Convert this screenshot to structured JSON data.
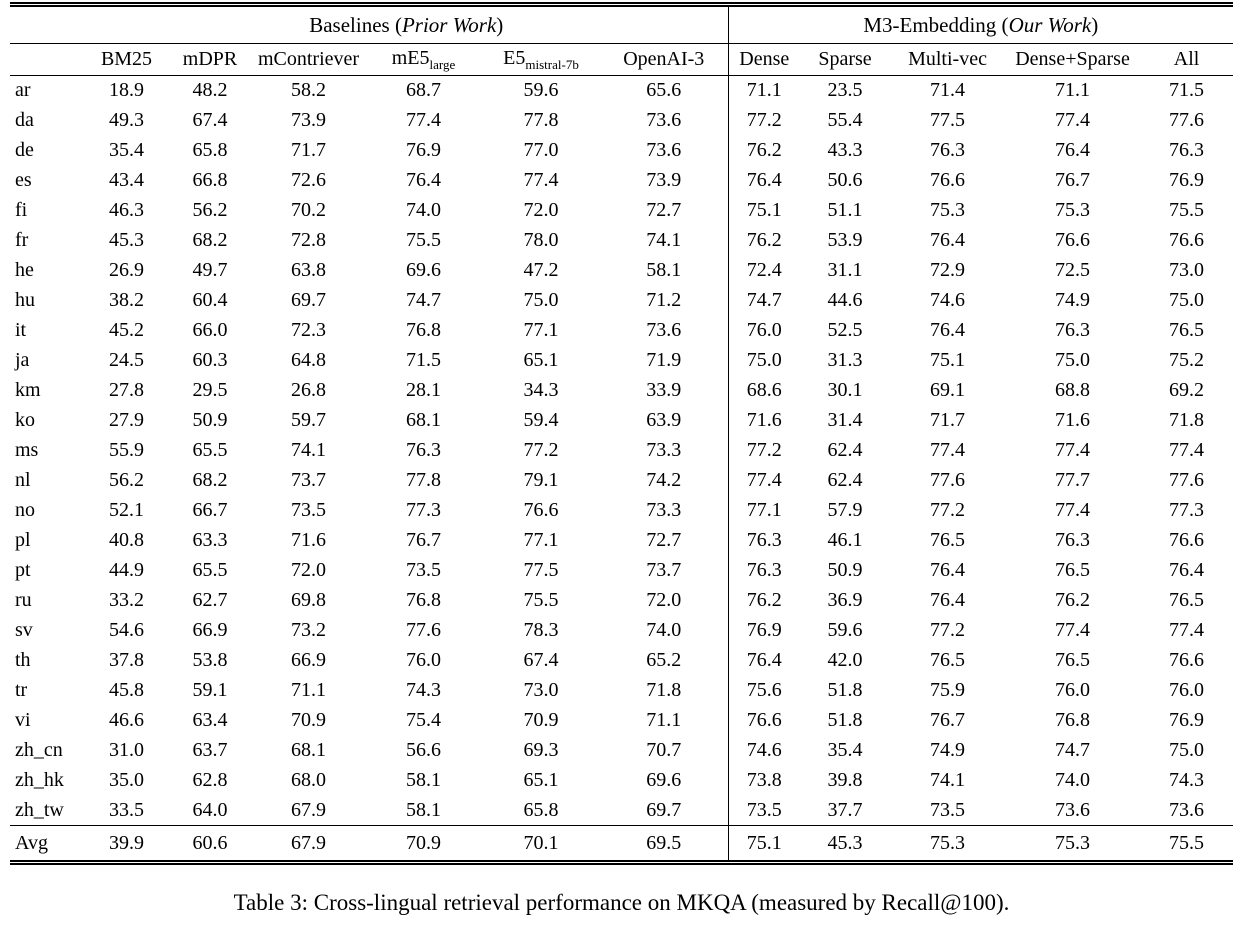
{
  "table": {
    "groups": [
      {
        "label_prefix": "Baselines (",
        "label_italic": "Prior Work",
        "label_suffix": ")"
      },
      {
        "label_prefix": "M3-Embedding (",
        "label_italic": "Our Work",
        "label_suffix": ")"
      }
    ],
    "columns": [
      {
        "main": "BM25"
      },
      {
        "main": "mDPR"
      },
      {
        "main": "mContriever"
      },
      {
        "main": "mE5",
        "sub": "large"
      },
      {
        "main": "E5",
        "sub": "mistral-7b"
      },
      {
        "main": "OpenAI-3"
      },
      {
        "main": "Dense"
      },
      {
        "main": "Sparse"
      },
      {
        "main": "Multi-vec"
      },
      {
        "main": "Dense+Sparse"
      },
      {
        "main": "All"
      }
    ],
    "rows": [
      {
        "lang": "ar",
        "values": [
          "18.9",
          "48.2",
          "58.2",
          "68.7",
          "59.6",
          "65.6",
          "71.1",
          "23.5",
          "71.4",
          "71.1",
          "71.5"
        ],
        "bold": [
          10
        ]
      },
      {
        "lang": "da",
        "values": [
          "49.3",
          "67.4",
          "73.9",
          "77.4",
          "77.8",
          "73.6",
          "77.2",
          "55.4",
          "77.5",
          "77.4",
          "77.6"
        ],
        "bold": [
          4
        ]
      },
      {
        "lang": "de",
        "values": [
          "35.4",
          "65.8",
          "71.7",
          "76.9",
          "77.0",
          "73.6",
          "76.2",
          "43.3",
          "76.3",
          "76.4",
          "76.3"
        ],
        "bold": [
          4
        ]
      },
      {
        "lang": "es",
        "values": [
          "43.4",
          "66.8",
          "72.6",
          "76.4",
          "77.4",
          "73.9",
          "76.4",
          "50.6",
          "76.6",
          "76.7",
          "76.9"
        ],
        "bold": [
          4
        ]
      },
      {
        "lang": "fi",
        "values": [
          "46.3",
          "56.2",
          "70.2",
          "74.0",
          "72.0",
          "72.7",
          "75.1",
          "51.1",
          "75.3",
          "75.3",
          "75.5"
        ],
        "bold": [
          10
        ]
      },
      {
        "lang": "fr",
        "values": [
          "45.3",
          "68.2",
          "72.8",
          "75.5",
          "78.0",
          "74.1",
          "76.2",
          "53.9",
          "76.4",
          "76.6",
          "76.6"
        ],
        "bold": [
          4
        ]
      },
      {
        "lang": "he",
        "values": [
          "26.9",
          "49.7",
          "63.8",
          "69.6",
          "47.2",
          "58.1",
          "72.4",
          "31.1",
          "72.9",
          "72.5",
          "73.0"
        ],
        "bold": [
          10
        ]
      },
      {
        "lang": "hu",
        "values": [
          "38.2",
          "60.4",
          "69.7",
          "74.7",
          "75.0",
          "71.2",
          "74.7",
          "44.6",
          "74.6",
          "74.9",
          "75.0"
        ],
        "bold": [
          4,
          10
        ]
      },
      {
        "lang": "it",
        "values": [
          "45.2",
          "66.0",
          "72.3",
          "76.8",
          "77.1",
          "73.6",
          "76.0",
          "52.5",
          "76.4",
          "76.3",
          "76.5"
        ],
        "bold": [
          4
        ]
      },
      {
        "lang": "ja",
        "values": [
          "24.5",
          "60.3",
          "64.8",
          "71.5",
          "65.1",
          "71.9",
          "75.0",
          "31.3",
          "75.1",
          "75.0",
          "75.2"
        ],
        "bold": [
          10
        ]
      },
      {
        "lang": "km",
        "values": [
          "27.8",
          "29.5",
          "26.8",
          "28.1",
          "34.3",
          "33.9",
          "68.6",
          "30.1",
          "69.1",
          "68.8",
          "69.2"
        ],
        "bold": [
          10
        ]
      },
      {
        "lang": "ko",
        "values": [
          "27.9",
          "50.9",
          "59.7",
          "68.1",
          "59.4",
          "63.9",
          "71.6",
          "31.4",
          "71.7",
          "71.6",
          "71.8"
        ],
        "bold": [
          10
        ]
      },
      {
        "lang": "ms",
        "values": [
          "55.9",
          "65.5",
          "74.1",
          "76.3",
          "77.2",
          "73.3",
          "77.2",
          "62.4",
          "77.4",
          "77.4",
          "77.4"
        ],
        "bold": [
          8,
          9,
          10
        ]
      },
      {
        "lang": "nl",
        "values": [
          "56.2",
          "68.2",
          "73.7",
          "77.8",
          "79.1",
          "74.2",
          "77.4",
          "62.4",
          "77.6",
          "77.7",
          "77.6"
        ],
        "bold": [
          4
        ]
      },
      {
        "lang": "no",
        "values": [
          "52.1",
          "66.7",
          "73.5",
          "77.3",
          "76.6",
          "73.3",
          "77.1",
          "57.9",
          "77.2",
          "77.4",
          "77.3"
        ],
        "bold": [
          9
        ]
      },
      {
        "lang": "pl",
        "values": [
          "40.8",
          "63.3",
          "71.6",
          "76.7",
          "77.1",
          "72.7",
          "76.3",
          "46.1",
          "76.5",
          "76.3",
          "76.6"
        ],
        "bold": [
          4
        ]
      },
      {
        "lang": "pt",
        "values": [
          "44.9",
          "65.5",
          "72.0",
          "73.5",
          "77.5",
          "73.7",
          "76.3",
          "50.9",
          "76.4",
          "76.5",
          "76.4"
        ],
        "bold": [
          4
        ]
      },
      {
        "lang": "ru",
        "values": [
          "33.2",
          "62.7",
          "69.8",
          "76.8",
          "75.5",
          "72.0",
          "76.2",
          "36.9",
          "76.4",
          "76.2",
          "76.5"
        ],
        "bold": [
          3
        ]
      },
      {
        "lang": "sv",
        "values": [
          "54.6",
          "66.9",
          "73.2",
          "77.6",
          "78.3",
          "74.0",
          "76.9",
          "59.6",
          "77.2",
          "77.4",
          "77.4"
        ],
        "bold": [
          4
        ]
      },
      {
        "lang": "th",
        "values": [
          "37.8",
          "53.8",
          "66.9",
          "76.0",
          "67.4",
          "65.2",
          "76.4",
          "42.0",
          "76.5",
          "76.5",
          "76.6"
        ],
        "bold": [
          10
        ]
      },
      {
        "lang": "tr",
        "values": [
          "45.8",
          "59.1",
          "71.1",
          "74.3",
          "73.0",
          "71.8",
          "75.6",
          "51.8",
          "75.9",
          "76.0",
          "76.0"
        ],
        "bold": [
          9,
          10
        ]
      },
      {
        "lang": "vi",
        "values": [
          "46.6",
          "63.4",
          "70.9",
          "75.4",
          "70.9",
          "71.1",
          "76.6",
          "51.8",
          "76.7",
          "76.8",
          "76.9"
        ],
        "bold": [
          10
        ]
      },
      {
        "lang": "zh_cn",
        "values": [
          "31.0",
          "63.7",
          "68.1",
          "56.6",
          "69.3",
          "70.7",
          "74.6",
          "35.4",
          "74.9",
          "74.7",
          "75.0"
        ],
        "bold": [
          10
        ]
      },
      {
        "lang": "zh_hk",
        "values": [
          "35.0",
          "62.8",
          "68.0",
          "58.1",
          "65.1",
          "69.6",
          "73.8",
          "39.8",
          "74.1",
          "74.0",
          "74.3"
        ],
        "bold": [
          10
        ]
      },
      {
        "lang": "zh_tw",
        "values": [
          "33.5",
          "64.0",
          "67.9",
          "58.1",
          "65.8",
          "69.7",
          "73.5",
          "37.7",
          "73.5",
          "73.6",
          "73.6"
        ],
        "bold": [
          9,
          10
        ]
      }
    ],
    "avg_row": {
      "lang": "Avg",
      "values": [
        "39.9",
        "60.6",
        "67.9",
        "70.9",
        "70.1",
        "69.5",
        "75.1",
        "45.3",
        "75.3",
        "75.3",
        "75.5"
      ],
      "bold": [
        10
      ]
    }
  },
  "caption": "Table 3: Cross-lingual retrieval performance on MKQA (measured by Recall@100)."
}
